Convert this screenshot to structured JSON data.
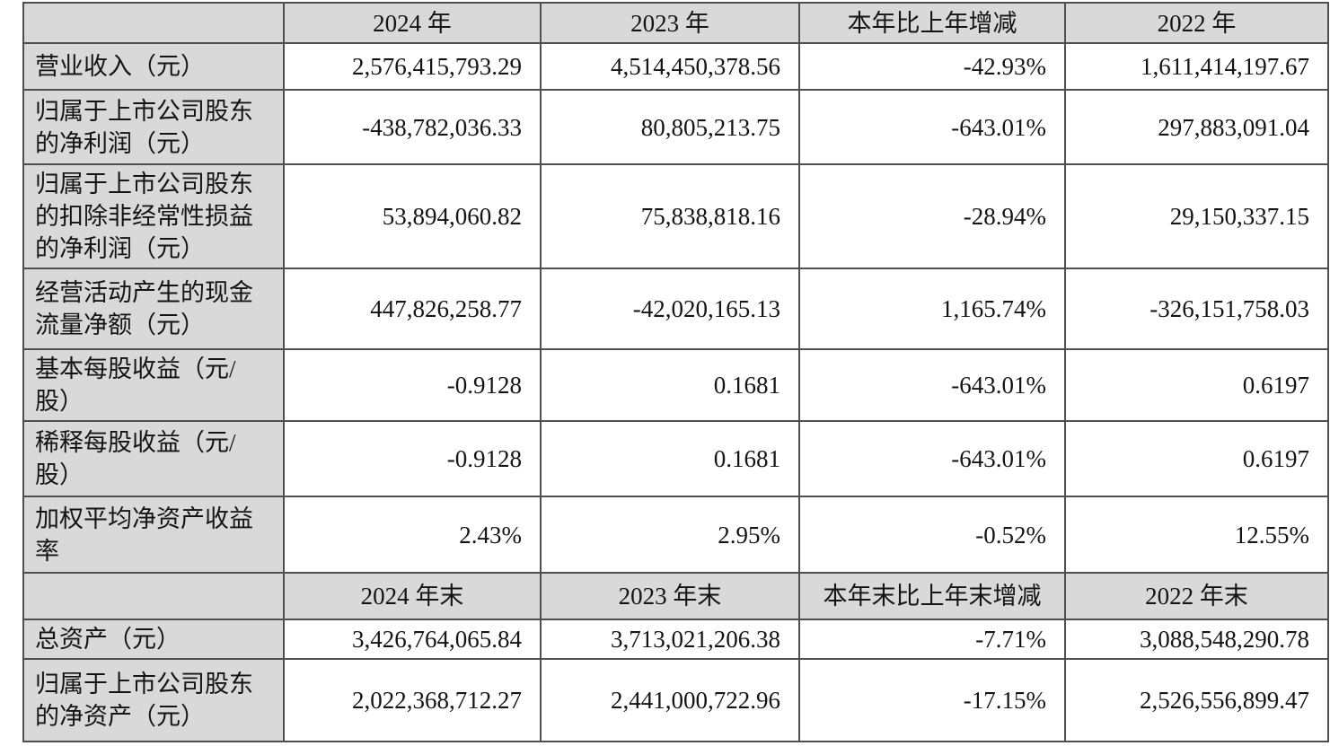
{
  "colors": {
    "header_and_label_bg": "#d9d9d9",
    "data_cell_bg": "#ffffff",
    "border": "#4f4f4f",
    "text": "#141414"
  },
  "table": {
    "header1": {
      "col0": "",
      "col1": "2024 年",
      "col2": "2023 年",
      "col3": "本年比上年增减",
      "col4": "2022 年"
    },
    "rows": [
      {
        "label": "营业收入（元）",
        "c1": "2,576,415,793.29",
        "c2": "4,514,450,378.56",
        "c3": "-42.93%",
        "c4": "1,611,414,197.67"
      },
      {
        "label": "归属于上市公司股东的净利润（元）",
        "c1": "-438,782,036.33",
        "c2": "80,805,213.75",
        "c3": "-643.01%",
        "c4": "297,883,091.04"
      },
      {
        "label": "归属于上市公司股东的扣除非经常性损益的净利润（元）",
        "c1": "53,894,060.82",
        "c2": "75,838,818.16",
        "c3": "-28.94%",
        "c4": "29,150,337.15"
      },
      {
        "label": "经营活动产生的现金流量净额（元）",
        "c1": "447,826,258.77",
        "c2": "-42,020,165.13",
        "c3": "1,165.74%",
        "c4": "-326,151,758.03"
      },
      {
        "label": "基本每股收益（元/股）",
        "c1": "-0.9128",
        "c2": "0.1681",
        "c3": "-643.01%",
        "c4": "0.6197"
      },
      {
        "label": "稀释每股收益（元/股）",
        "c1": "-0.9128",
        "c2": "0.1681",
        "c3": "-643.01%",
        "c4": "0.6197"
      },
      {
        "label": "加权平均净资产收益率",
        "c1": "2.43%",
        "c2": "2.95%",
        "c3": "-0.52%",
        "c4": "12.55%"
      }
    ],
    "header2": {
      "col0": "",
      "col1": "2024 年末",
      "col2": "2023 年末",
      "col3": "本年末比上年末增减",
      "col4": "2022 年末"
    },
    "rows2": [
      {
        "label": "总资产（元）",
        "c1": "3,426,764,065.84",
        "c2": "3,713,021,206.38",
        "c3": "-7.71%",
        "c4": "3,088,548,290.78"
      },
      {
        "label": "归属于上市公司股东的净资产（元）",
        "c1": "2,022,368,712.27",
        "c2": "2,441,000,722.96",
        "c3": "-17.15%",
        "c4": "2,526,556,899.47"
      }
    ]
  }
}
